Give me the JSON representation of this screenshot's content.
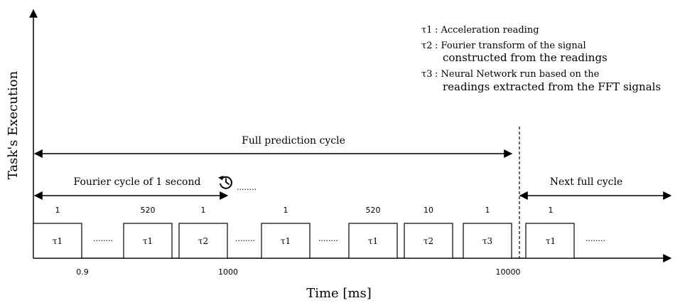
{
  "axes": {
    "y_label": "Task's Execution",
    "x_label": "Time [ms]"
  },
  "legend": [
    {
      "symbol": "τ1",
      "line1": ": Acceleration reading",
      "line2": ""
    },
    {
      "symbol": "τ2",
      "line1": ": Fourier transform of the signal",
      "line2": "constructed from the readings"
    },
    {
      "symbol": "τ3",
      "line1": ": Neural Network run based on the",
      "line2": "readings extracted from the FFT signals"
    }
  ],
  "spans": {
    "full_cycle": "Full prediction cycle",
    "fourier_cycle": "Fourier cycle of 1 second",
    "next_cycle": "Next full cycle"
  },
  "repeat_icon": "history-icon",
  "ellipsis": "........",
  "tasks": [
    {
      "label": "τ1",
      "count": "1"
    },
    {
      "label": "τ1",
      "count": "520"
    },
    {
      "label": "τ2",
      "count": "1"
    },
    {
      "label": "τ1",
      "count": "1"
    },
    {
      "label": "τ1",
      "count": "520"
    },
    {
      "label": "τ2",
      "count": "10"
    },
    {
      "label": "τ3",
      "count": "1"
    },
    {
      "label": "τ1",
      "count": "1"
    }
  ],
  "time_ticks": [
    "0.9",
    "1000",
    "10000"
  ]
}
